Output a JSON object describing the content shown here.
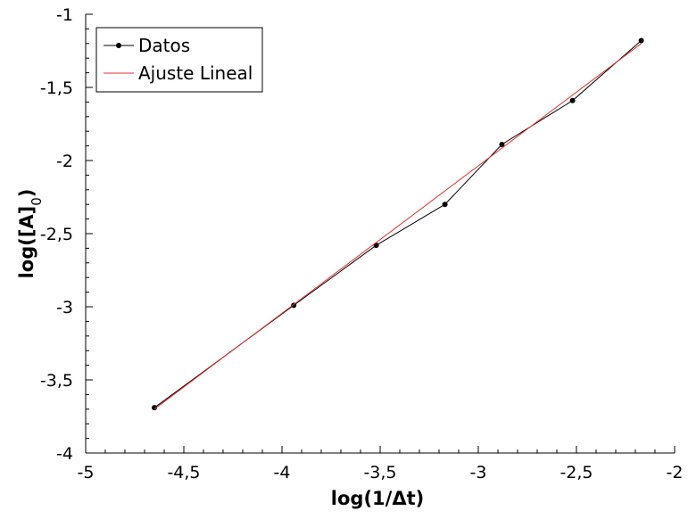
{
  "chart_data": {
    "type": "line",
    "title": "",
    "xlabel": "log(1/Δt)",
    "ylabel_main": "log([A]",
    "ylabel_sub": "0",
    "ylabel_close": ")",
    "xlim": [
      -5,
      -2
    ],
    "ylim": [
      -4,
      -1
    ],
    "x_ticks": [
      -5,
      -4.5,
      -4,
      -3.5,
      -3,
      -2.5,
      -2
    ],
    "x_tick_labels": [
      "-5",
      "-4,5",
      "-4",
      "-3,5",
      "-3",
      "-2,5",
      "-2"
    ],
    "y_ticks": [
      -4,
      -3.5,
      -3,
      -2.5,
      -2,
      -1.5,
      -1
    ],
    "y_tick_labels": [
      "-4",
      "-3,5",
      "-3",
      "-2,5",
      "-2",
      "-1,5",
      "-1"
    ],
    "grid": false,
    "legend_position": "top-left",
    "series": [
      {
        "name": "Datos",
        "color": "#000000",
        "marker": "circle",
        "x": [
          -4.65,
          -3.94,
          -3.52,
          -3.17,
          -2.88,
          -2.52,
          -2.17
        ],
        "y": [
          -3.69,
          -2.99,
          -2.58,
          -2.3,
          -1.89,
          -1.59,
          -1.18
        ]
      },
      {
        "name": "Ajuste Lineal",
        "color": "#e03030",
        "marker": "none",
        "x": [
          -4.65,
          -2.17
        ],
        "y": [
          -3.7,
          -1.2
        ]
      }
    ]
  }
}
